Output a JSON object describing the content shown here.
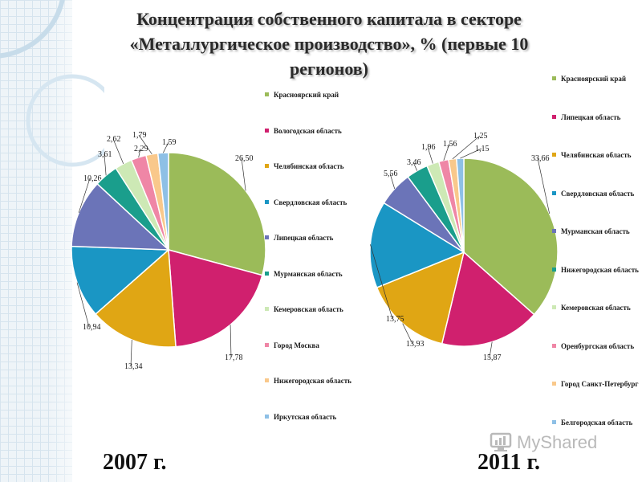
{
  "title": "Концентрация собственного капитала в секторе «Металлургическое производство», % (первые 10 регионов)",
  "watermark": "MyShared",
  "colors": [
    "#9bbb59",
    "#d0206e",
    "#e0a614",
    "#1a96c4",
    "#6b74b8",
    "#1a9e8c",
    "#cde9b5",
    "#ef86a6",
    "#f9c88b",
    "#8ec0e6"
  ],
  "chart_data": [
    {
      "type": "pie",
      "year_label": "2007 г.",
      "categories": [
        "Красноярский край",
        "Вологодская область",
        "Челябинская область",
        "Свердловская область",
        "Липецкая область",
        "Мурманская область",
        "Кемеровская область",
        "Город Москва",
        "Нижегородская область",
        "Иркутская область"
      ],
      "values": [
        26.5,
        17.78,
        13.34,
        10.94,
        10.26,
        3.61,
        2.62,
        2.29,
        1.79,
        1.59
      ],
      "data_labels": [
        "26,50",
        "17,78",
        "13,34",
        "10,94",
        "10,26",
        "3,61",
        "2,62",
        "2,29",
        "1,79",
        "1,59"
      ],
      "legend_placement": "right"
    },
    {
      "type": "pie",
      "year_label": "2011 г.",
      "categories": [
        "Красноярский край",
        "Липецкая область",
        "Челябинская область",
        "Свердловская область",
        "Мурманская область",
        "Нижегородская область",
        "Кемеровская область",
        "Оренбургская область",
        "Город Санкт-Петербург",
        "Белгородская область"
      ],
      "values": [
        33.66,
        15.87,
        13.93,
        13.75,
        5.56,
        3.46,
        1.96,
        1.56,
        1.25,
        1.15
      ],
      "data_labels": [
        "33,66",
        "15,87",
        "13,93",
        "13,75",
        "5,56",
        "3,46",
        "1,96",
        "1,56",
        "1,25",
        "1,15"
      ],
      "legend_placement": "right"
    }
  ]
}
